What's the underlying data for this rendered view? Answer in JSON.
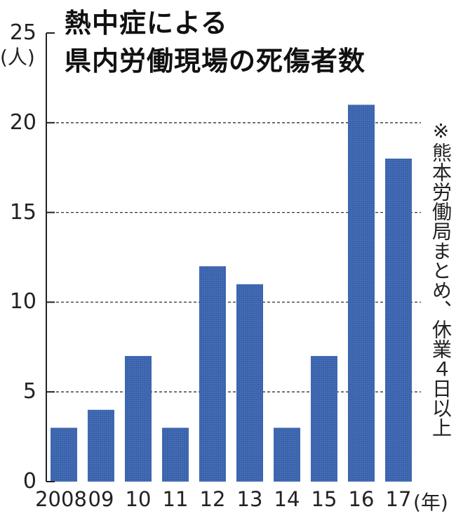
{
  "title_line1": "熱中症による",
  "title_line2": "県内労働現場の死傷者数",
  "note": "※熊本労働局まとめ、休業４日以上",
  "chart_data": {
    "type": "bar",
    "title": "熱中症による県内労働現場の死傷者数",
    "xlabel": "(年)",
    "ylabel": "(人)",
    "categories": [
      "2008",
      "09",
      "10",
      "11",
      "12",
      "13",
      "14",
      "15",
      "16",
      "17"
    ],
    "values": [
      3,
      4,
      7,
      3,
      12,
      11,
      3,
      7,
      21,
      18
    ],
    "yticks": [
      "0",
      "5",
      "10",
      "15",
      "20",
      "25"
    ],
    "ylim": [
      0,
      25
    ],
    "grid": "dashed horizontal at 5, 10, 15, 20",
    "legend": "none",
    "bar_color": "#3b64ad"
  }
}
